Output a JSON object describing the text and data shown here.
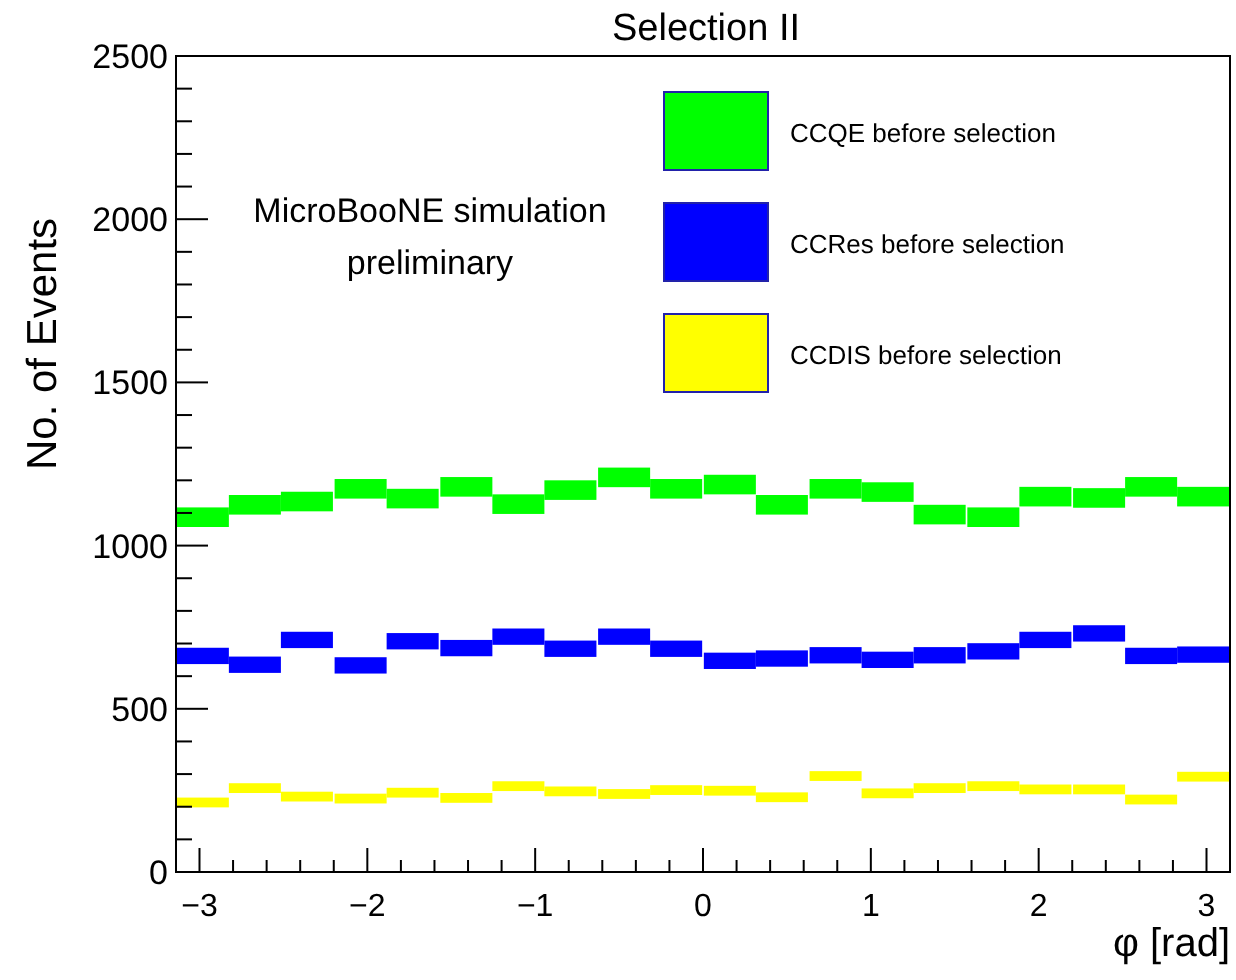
{
  "chart_data": {
    "type": "bar",
    "title": "Selection II",
    "xlabel": "φ [rad]",
    "ylabel": "No. of Events",
    "annotations": [
      "MicroBooNE simulation\npreliminary"
    ],
    "x": [
      -2.98,
      -2.67,
      -2.36,
      -2.04,
      -1.73,
      -1.41,
      -1.1,
      -0.79,
      -0.47,
      -0.16,
      0.16,
      0.47,
      0.79,
      1.1,
      1.41,
      1.73,
      2.04,
      2.36,
      2.67,
      2.98
    ],
    "series": [
      {
        "name": "CCQE before selection",
        "color": "#00ff00",
        "base": [
          1057,
          1095,
          1105,
          1144,
          1114,
          1150,
          1097,
          1140,
          1179,
          1144,
          1157,
          1095,
          1144,
          1134,
          1065,
          1057,
          1120,
          1116,
          1150,
          1120
        ],
        "values": [
          60,
          60,
          60,
          60,
          60,
          60,
          60,
          60,
          60,
          60,
          60,
          60,
          60,
          60,
          60,
          60,
          60,
          60,
          60,
          60
        ]
      },
      {
        "name": "CCRes before selection",
        "color": "#0000ff",
        "base": [
          637,
          610,
          686,
          608,
          682,
          661,
          696,
          659,
          696,
          659,
          622,
          629,
          639,
          625,
          639,
          651,
          686,
          706,
          637,
          641
        ],
        "values": [
          50,
          50,
          50,
          50,
          50,
          50,
          50,
          50,
          50,
          50,
          50,
          50,
          50,
          50,
          50,
          50,
          50,
          50,
          50,
          50
        ]
      },
      {
        "name": "CCDIS before selection",
        "color": "#ffff00",
        "base": [
          198,
          242,
          216,
          210,
          228,
          212,
          248,
          232,
          224,
          236,
          234,
          214,
          279,
          226,
          242,
          248,
          238,
          238,
          207,
          277
        ],
        "values": [
          30,
          30,
          30,
          30,
          30,
          30,
          30,
          30,
          30,
          30,
          30,
          30,
          30,
          30,
          30,
          30,
          30,
          30,
          30,
          30
        ]
      }
    ],
    "xlim": [
      -3.14,
      3.14
    ],
    "xticks": [
      -3,
      {
        "value": -2.8,
        "label": null
      },
      {
        "value": -2.6,
        "label": null
      },
      {
        "value": -2.4,
        "label": null
      },
      {
        "value": -2.2,
        "label": null
      },
      {
        "value": -2,
        "label": "−2"
      },
      {
        "value": -1.8,
        "label": null
      },
      {
        "value": -1.6,
        "label": null
      },
      {
        "value": -1.4,
        "label": null
      },
      {
        "value": -1.2,
        "label": null
      },
      {
        "value": -1,
        "label": "−1"
      },
      {
        "value": -0.8,
        "label": null
      },
      {
        "value": -0.6,
        "label": null
      },
      {
        "value": -0.4,
        "label": null
      },
      {
        "value": -0.2,
        "label": null
      },
      0,
      {
        "value": 0.2,
        "label": null
      },
      {
        "value": 0.4,
        "label": null
      },
      {
        "value": 0.6,
        "label": null
      },
      {
        "value": 0.8,
        "label": null
      },
      1,
      {
        "value": 1.2,
        "label": null
      },
      {
        "value": 1.4,
        "label": null
      },
      {
        "value": 1.6,
        "label": null
      },
      {
        "value": 1.8,
        "label": null
      },
      2,
      {
        "value": 2.2,
        "label": null
      },
      {
        "value": 2.4,
        "label": null
      },
      {
        "value": 2.6,
        "label": null
      },
      {
        "value": 2.8,
        "label": null
      },
      3
    ],
    "ylim": [
      0,
      2500
    ],
    "yticks": [
      0,
      {
        "value": 100,
        "label": null
      },
      {
        "value": 200,
        "label": null
      },
      {
        "value": 300,
        "label": null
      },
      {
        "value": 400,
        "label": null
      },
      500,
      {
        "value": 600,
        "label": null
      },
      {
        "value": 700,
        "label": null
      },
      {
        "value": 800,
        "label": null
      },
      {
        "value": 900,
        "label": null
      },
      1000,
      {
        "value": 1100,
        "label": null
      },
      {
        "value": 1200,
        "label": null
      },
      {
        "value": 1300,
        "label": null
      },
      {
        "value": 1400,
        "label": null
      },
      1500,
      {
        "value": 1600,
        "label": null
      },
      {
        "value": 1700,
        "label": null
      },
      {
        "value": 1800,
        "label": null
      },
      {
        "value": 1900,
        "label": null
      },
      2000,
      {
        "value": 2100,
        "label": null
      },
      {
        "value": 2200,
        "label": null
      },
      {
        "value": 2300,
        "label": null
      },
      {
        "value": 2400,
        "label": null
      },
      2500
    ],
    "legend": "top right"
  }
}
